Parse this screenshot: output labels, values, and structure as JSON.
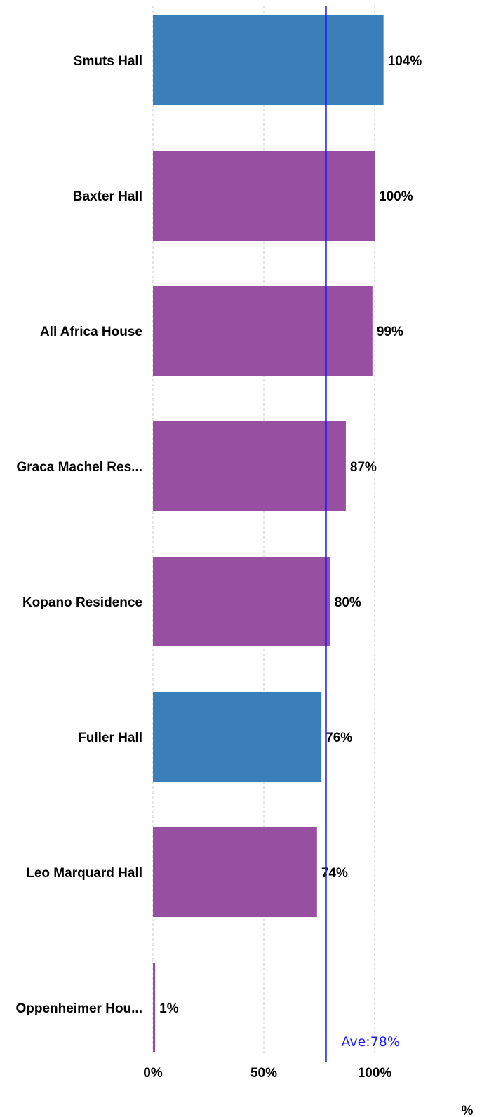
{
  "chart_data": {
    "type": "bar",
    "orientation": "horizontal",
    "categories": [
      "Smuts Hall",
      "Baxter Hall",
      "All Africa House",
      "Graca Machel Res...",
      "Kopano Residence",
      "Fuller Hall",
      "Leo Marquard Hall",
      "Oppenheimer Hou..."
    ],
    "values": [
      104,
      100,
      99,
      87,
      80,
      76,
      74,
      1
    ],
    "value_labels": [
      "104%",
      "100%",
      "99%",
      "87%",
      "80%",
      "76%",
      "74%",
      "1%"
    ],
    "bar_colors": [
      "#3a7fb9",
      "#974fa2",
      "#974fa2",
      "#974fa2",
      "#974fa2",
      "#3a7fb9",
      "#974fa2",
      "#974fa2"
    ],
    "xlim": [
      0,
      100
    ],
    "x_ticks": [
      0,
      50,
      100
    ],
    "x_tick_labels": [
      "0%",
      "50%",
      "100%"
    ],
    "x_unit_label": "%",
    "grid": true,
    "reference_line": {
      "value": 78,
      "label": "Ave:78%",
      "color": "#1a1aff"
    }
  }
}
